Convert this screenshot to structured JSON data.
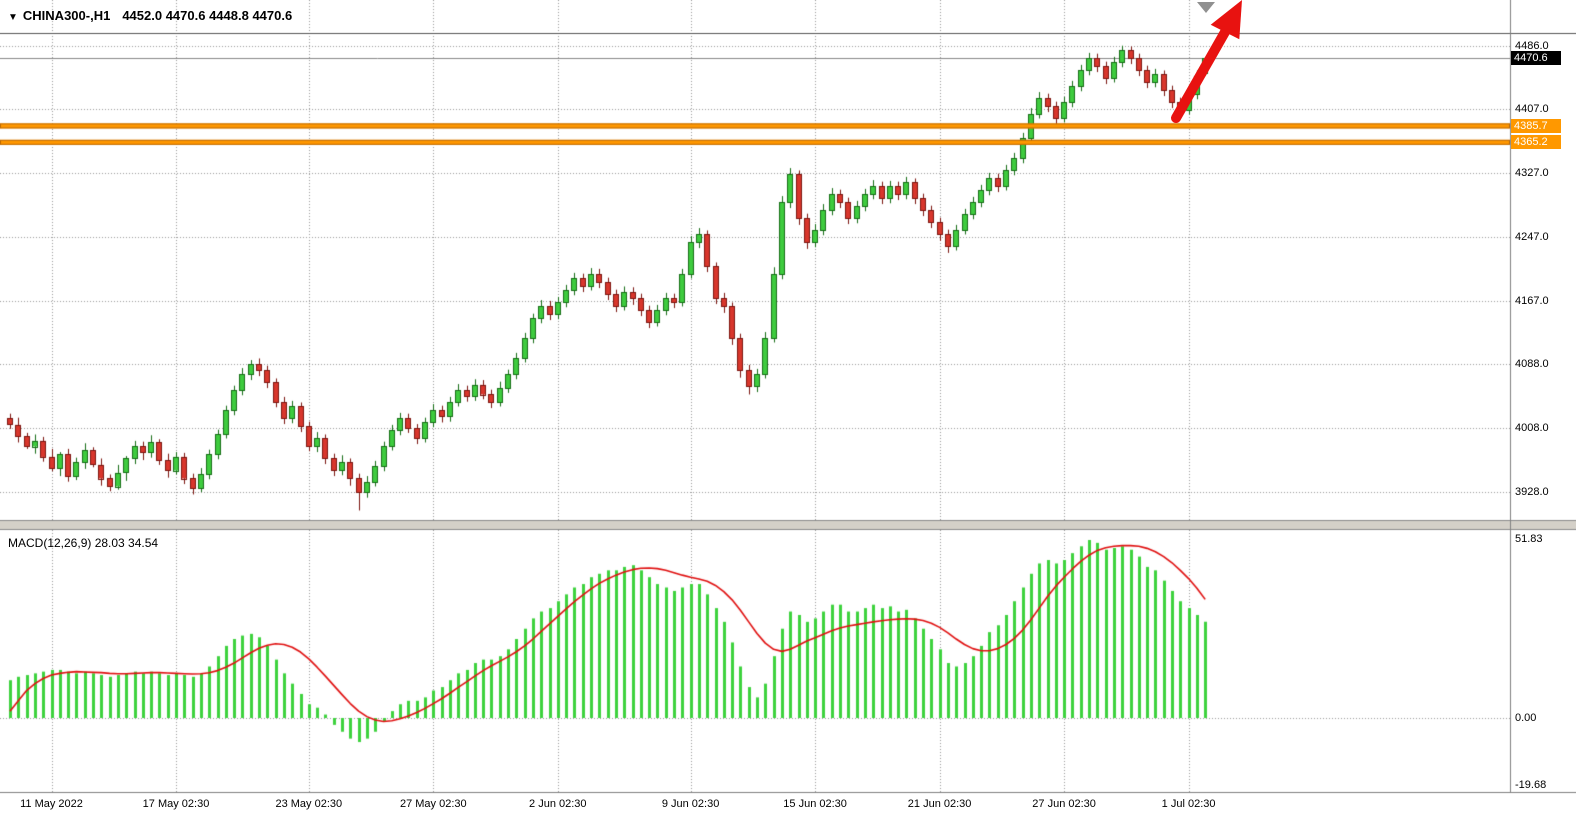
{
  "window": {
    "title_icon": "▼",
    "symbol": "CHINA300-,H1",
    "ohlc": "4452.0 4470.6 4448.8 4470.6"
  },
  "colors": {
    "up_fill": "#3ecb3e",
    "up_border": "#166e16",
    "down_fill": "#d8362c",
    "down_border": "#7c150f",
    "grid": "#999999",
    "bid_line": "#888888",
    "orange_line": "#ff9800",
    "orange_line_border": "#c06a00",
    "macd_bar": "#3ed23e",
    "macd_signal": "#e01010",
    "arrow": "#e81210",
    "current_price_bg": "#000000",
    "separator": "#d4d0c8"
  },
  "chart_data": [
    {
      "type": "candlestick",
      "symbol": "CHINA300-",
      "timeframe": "H1",
      "ohlc_current": {
        "open": 4452.0,
        "high": 4470.6,
        "low": 4448.8,
        "close": 4470.6
      },
      "current_price": 4470.6,
      "current_price_label": "4470.6",
      "y_tick_labels": [
        "4486.0",
        "4407.0",
        "4327.0",
        "4247.0",
        "4167.0",
        "4088.0",
        "4008.0",
        "3928.0"
      ],
      "y_tick_values": [
        4486.0,
        4407.0,
        4327.0,
        4247.0,
        4167.0,
        4088.0,
        4008.0,
        3928.0
      ],
      "x_tick_labels": [
        "11 May 2022",
        "17 May 02:30",
        "23 May 02:30",
        "27 May 02:30",
        "2 Jun 02:30",
        "9 Jun 02:30",
        "15 Jun 02:30",
        "21 Jun 02:30",
        "27 Jun 02:30",
        "1 Jul 02:30"
      ],
      "x_tick_indices": [
        5,
        20,
        36,
        51,
        66,
        82,
        97,
        112,
        127,
        142
      ],
      "horizontal_lines": [
        {
          "price": 4385.7,
          "label": "4385.7"
        },
        {
          "price": 4365.2,
          "label": "4365.2"
        }
      ],
      "candles": [
        [
          4020,
          4026,
          4007,
          4012
        ],
        [
          4012,
          4021,
          3990,
          3998
        ],
        [
          3998,
          4002,
          3982,
          3985
        ],
        [
          3985,
          4000,
          3976,
          3992
        ],
        [
          3992,
          3997,
          3966,
          3972
        ],
        [
          3972,
          3982,
          3954,
          3958
        ],
        [
          3958,
          3978,
          3948,
          3975
        ],
        [
          3975,
          3982,
          3941,
          3948
        ],
        [
          3948,
          3971,
          3943,
          3965
        ],
        [
          3965,
          3989,
          3957,
          3980
        ],
        [
          3980,
          3984,
          3959,
          3962
        ],
        [
          3962,
          3970,
          3936,
          3945
        ],
        [
          3945,
          3950,
          3929,
          3935
        ],
        [
          3935,
          3962,
          3931,
          3952
        ],
        [
          3952,
          3973,
          3942,
          3970
        ],
        [
          3970,
          3992,
          3963,
          3985
        ],
        [
          3985,
          3991,
          3968,
          3978
        ],
        [
          3978,
          3999,
          3971,
          3990
        ],
        [
          3990,
          3994,
          3962,
          3968
        ],
        [
          3968,
          3976,
          3946,
          3955
        ],
        [
          3955,
          3978,
          3950,
          3972
        ],
        [
          3972,
          3977,
          3938,
          3945
        ],
        [
          3945,
          3951,
          3925,
          3932
        ],
        [
          3932,
          3958,
          3928,
          3950
        ],
        [
          3950,
          3981,
          3944,
          3975
        ],
        [
          3975,
          4006,
          3969,
          4000
        ],
        [
          4000,
          4036,
          3995,
          4030
        ],
        [
          4030,
          4061,
          4024,
          4055
        ],
        [
          4055,
          4083,
          4049,
          4075
        ],
        [
          4075,
          4093,
          4068,
          4088
        ],
        [
          4088,
          4095,
          4073,
          4080
        ],
        [
          4080,
          4086,
          4058,
          4065
        ],
        [
          4065,
          4070,
          4034,
          4040
        ],
        [
          4040,
          4047,
          4013,
          4020
        ],
        [
          4020,
          4042,
          4014,
          4035
        ],
        [
          4035,
          4040,
          4003,
          4010
        ],
        [
          4010,
          4016,
          3979,
          3985
        ],
        [
          3985,
          4003,
          3978,
          3995
        ],
        [
          3995,
          4000,
          3963,
          3970
        ],
        [
          3970,
          3976,
          3948,
          3955
        ],
        [
          3955,
          3974,
          3949,
          3965
        ],
        [
          3965,
          3970,
          3936,
          3945
        ],
        [
          3945,
          3951,
          3905,
          3928
        ],
        [
          3928,
          3948,
          3921,
          3940
        ],
        [
          3940,
          3967,
          3935,
          3960
        ],
        [
          3960,
          3991,
          3954,
          3985
        ],
        [
          3985,
          4012,
          3980,
          4005
        ],
        [
          4005,
          4027,
          3999,
          4020
        ],
        [
          4020,
          4026,
          4002,
          4008
        ],
        [
          4008,
          4013,
          3988,
          3995
        ],
        [
          3995,
          4021,
          3990,
          4015
        ],
        [
          4015,
          4038,
          4009,
          4030
        ],
        [
          4030,
          4036,
          4015,
          4022
        ],
        [
          4022,
          4047,
          4016,
          4040
        ],
        [
          4040,
          4063,
          4035,
          4055
        ],
        [
          4055,
          4061,
          4041,
          4048
        ],
        [
          4048,
          4069,
          4042,
          4062
        ],
        [
          4062,
          4068,
          4044,
          4050
        ],
        [
          4050,
          4056,
          4033,
          4040
        ],
        [
          4040,
          4066,
          4035,
          4058
        ],
        [
          4058,
          4081,
          4052,
          4075
        ],
        [
          4075,
          4102,
          4069,
          4095
        ],
        [
          4095,
          4127,
          4090,
          4120
        ],
        [
          4120,
          4151,
          4114,
          4145
        ],
        [
          4145,
          4168,
          4139,
          4160
        ],
        [
          4160,
          4167,
          4143,
          4150
        ],
        [
          4150,
          4172,
          4144,
          4165
        ],
        [
          4165,
          4187,
          4159,
          4180
        ],
        [
          4180,
          4202,
          4174,
          4195
        ],
        [
          4195,
          4201,
          4178,
          4185
        ],
        [
          4185,
          4208,
          4180,
          4200
        ],
        [
          4200,
          4207,
          4183,
          4190
        ],
        [
          4190,
          4196,
          4168,
          4175
        ],
        [
          4175,
          4181,
          4153,
          4160
        ],
        [
          4160,
          4185,
          4155,
          4178
        ],
        [
          4178,
          4184,
          4162,
          4170
        ],
        [
          4170,
          4176,
          4148,
          4155
        ],
        [
          4155,
          4161,
          4133,
          4140
        ],
        [
          4140,
          4162,
          4135,
          4155
        ],
        [
          4155,
          4177,
          4149,
          4170
        ],
        [
          4170,
          4176,
          4158,
          4165
        ],
        [
          4165,
          4207,
          4160,
          4200
        ],
        [
          4200,
          4248,
          4195,
          4240
        ],
        [
          4240,
          4258,
          4233,
          4250
        ],
        [
          4250,
          4255,
          4203,
          4210
        ],
        [
          4210,
          4215,
          4163,
          4170
        ],
        [
          4170,
          4177,
          4152,
          4160
        ],
        [
          4160,
          4165,
          4112,
          4120
        ],
        [
          4120,
          4126,
          4071,
          4080
        ],
        [
          4080,
          4087,
          4050,
          4060
        ],
        [
          4060,
          4082,
          4053,
          4075
        ],
        [
          4075,
          4128,
          4070,
          4120
        ],
        [
          4120,
          4209,
          4115,
          4200
        ],
        [
          4200,
          4298,
          4194,
          4290
        ],
        [
          4290,
          4333,
          4283,
          4325
        ],
        [
          4325,
          4330,
          4262,
          4270
        ],
        [
          4270,
          4276,
          4232,
          4240
        ],
        [
          4240,
          4263,
          4234,
          4255
        ],
        [
          4255,
          4288,
          4249,
          4280
        ],
        [
          4280,
          4308,
          4274,
          4300
        ],
        [
          4300,
          4306,
          4283,
          4290
        ],
        [
          4290,
          4296,
          4263,
          4270
        ],
        [
          4270,
          4292,
          4264,
          4285
        ],
        [
          4285,
          4307,
          4279,
          4300
        ],
        [
          4300,
          4318,
          4294,
          4310
        ],
        [
          4310,
          4316,
          4288,
          4295
        ],
        [
          4295,
          4317,
          4289,
          4310
        ],
        [
          4310,
          4316,
          4293,
          4300
        ],
        [
          4300,
          4322,
          4294,
          4315
        ],
        [
          4315,
          4320,
          4288,
          4295
        ],
        [
          4295,
          4301,
          4273,
          4280
        ],
        [
          4280,
          4286,
          4258,
          4265
        ],
        [
          4265,
          4271,
          4242,
          4250
        ],
        [
          4250,
          4256,
          4227,
          4235
        ],
        [
          4235,
          4262,
          4230,
          4255
        ],
        [
          4255,
          4282,
          4250,
          4275
        ],
        [
          4275,
          4297,
          4269,
          4290
        ],
        [
          4290,
          4312,
          4284,
          4305
        ],
        [
          4305,
          4327,
          4299,
          4320
        ],
        [
          4320,
          4326,
          4303,
          4310
        ],
        [
          4310,
          4337,
          4305,
          4330
        ],
        [
          4330,
          4352,
          4324,
          4345
        ],
        [
          4345,
          4377,
          4339,
          4370
        ],
        [
          4370,
          4408,
          4364,
          4400
        ],
        [
          4400,
          4428,
          4395,
          4420
        ],
        [
          4420,
          4426,
          4403,
          4410
        ],
        [
          4410,
          4416,
          4388,
          4395
        ],
        [
          4395,
          4422,
          4390,
          4415
        ],
        [
          4415,
          4442,
          4409,
          4435
        ],
        [
          4435,
          4462,
          4429,
          4455
        ],
        [
          4455,
          4477,
          4449,
          4470
        ],
        [
          4470,
          4476,
          4453,
          4460
        ],
        [
          4460,
          4466,
          4438,
          4445
        ],
        [
          4445,
          4472,
          4440,
          4465
        ],
        [
          4465,
          4486,
          4459,
          4480
        ],
        [
          4480,
          4485,
          4463,
          4470
        ],
        [
          4470,
          4476,
          4448,
          4455
        ],
        [
          4455,
          4461,
          4433,
          4440
        ],
        [
          4440,
          4457,
          4434,
          4450
        ],
        [
          4450,
          4455,
          4423,
          4430
        ],
        [
          4430,
          4436,
          4408,
          4415
        ],
        [
          4415,
          4421,
          4398,
          4405
        ],
        [
          4405,
          4432,
          4400,
          4425
        ],
        [
          4425,
          4455,
          4419,
          4448
        ],
        [
          4452,
          4470.6,
          4448.8,
          4470.6
        ]
      ]
    },
    {
      "type": "bar",
      "name": "MACD",
      "params": "12,26,9",
      "title": "MACD(12,26,9) 28.03 34.54",
      "last_main": 28.03,
      "last_signal": 34.54,
      "y_tick_labels": [
        "51.83",
        "0.00",
        "-19.68"
      ],
      "y_max": 51.83,
      "y_min": -19.68,
      "values": [
        11,
        12,
        12.5,
        13,
        13.5,
        14,
        14,
        13.5,
        13,
        13.5,
        13,
        12.5,
        12,
        12.5,
        13,
        13.5,
        13,
        13.5,
        13,
        12.5,
        13,
        12.5,
        12,
        13,
        15,
        18,
        21,
        23,
        24,
        24.5,
        23.5,
        21,
        17,
        13,
        10,
        7,
        4,
        3,
        1,
        -2,
        -4,
        -6,
        -7,
        -6,
        -4,
        -1,
        2,
        4,
        5,
        5,
        6,
        8,
        9,
        11,
        13,
        14,
        16,
        17,
        17,
        18,
        20,
        23,
        26,
        29,
        31,
        32,
        34,
        36,
        38,
        39,
        41,
        42,
        43,
        43,
        44,
        44.5,
        43,
        41,
        39,
        38,
        37,
        38,
        39,
        39,
        36,
        32,
        28,
        22,
        15,
        9,
        6,
        10,
        18,
        26,
        31,
        30,
        28,
        29,
        31,
        33,
        33,
        31,
        31,
        32,
        33,
        32,
        32.5,
        31,
        31.5,
        29,
        26,
        23,
        20,
        16,
        15,
        16,
        18,
        21,
        25,
        27,
        30,
        34,
        38,
        42,
        45,
        46,
        45,
        46,
        48,
        50,
        51.83,
        51,
        49,
        49.5,
        50,
        49,
        47,
        44,
        43,
        40,
        37,
        34,
        32,
        30,
        28.03
      ],
      "signal": [
        2,
        5,
        8,
        10,
        11.5,
        12.5,
        13,
        13.3,
        13.5,
        13.4,
        13.3,
        13.2,
        13,
        12.9,
        12.9,
        13,
        13.1,
        13.2,
        13.2,
        13.1,
        13,
        12.9,
        12.8,
        12.9,
        13.2,
        13.8,
        14.8,
        16,
        17.5,
        19,
        20.3,
        21.2,
        21.6,
        21.4,
        20.6,
        19.2,
        17.2,
        14.8,
        12.2,
        9.5,
        6.8,
        4.2,
        2,
        0.4,
        -0.6,
        -1,
        -0.8,
        -0.2,
        0.6,
        1.6,
        2.8,
        4.2,
        5.6,
        7.2,
        8.9,
        10.5,
        12.2,
        13.8,
        15.2,
        16.5,
        17.8,
        19.3,
        21,
        23,
        25.2,
        27.4,
        29.6,
        31.8,
        33.9,
        35.8,
        37.6,
        39.2,
        40.5,
        41.6,
        42.5,
        43.2,
        43.6,
        43.7,
        43.5,
        43,
        42.3,
        41.6,
        41,
        40.5,
        39.8,
        38.6,
        36.8,
        34.4,
        31.4,
        28,
        24.6,
        21.8,
        20,
        19.4,
        20,
        21.2,
        22.4,
        23.4,
        24.4,
        25.4,
        26.2,
        26.8,
        27.2,
        27.6,
        28,
        28.3,
        28.6,
        28.8,
        28.9,
        28.8,
        28.4,
        27.6,
        26.4,
        24.8,
        23,
        21.4,
        20.2,
        19.6,
        19.6,
        20.2,
        21.4,
        23.2,
        25.6,
        28.6,
        32,
        35.4,
        38.4,
        41,
        43.4,
        45.6,
        47.4,
        48.8,
        49.6,
        50,
        50.2,
        50.2,
        50,
        49.4,
        48.4,
        47,
        45.2,
        43,
        40.6,
        37.8,
        34.54
      ]
    }
  ]
}
